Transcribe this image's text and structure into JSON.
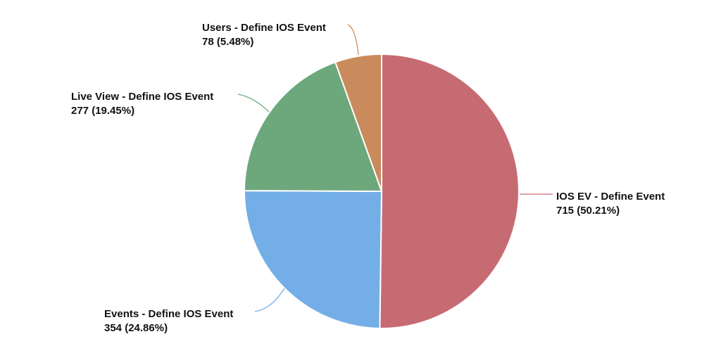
{
  "chart_data": {
    "type": "pie",
    "slices": [
      {
        "label": "IOS EV - Define Event",
        "value": 715,
        "percent": "50.21%",
        "color": "#C76B73"
      },
      {
        "label": "Events - Define IOS Event",
        "value": 354,
        "percent": "24.86%",
        "color": "#73AFE6"
      },
      {
        "label": "Live View - Define IOS Event",
        "value": 277,
        "percent": "19.45%",
        "color": "#6DA77C"
      },
      {
        "label": "Users - Define IOS Event",
        "value": 78,
        "percent": "5.48%",
        "color": "#C98A5C"
      }
    ],
    "start_angle": "top",
    "direction": "clockwise",
    "value_labels": [
      "715 (50.21%)",
      "354 (24.86%)",
      "277 (19.45%)",
      "78 (5.48%)"
    ]
  }
}
